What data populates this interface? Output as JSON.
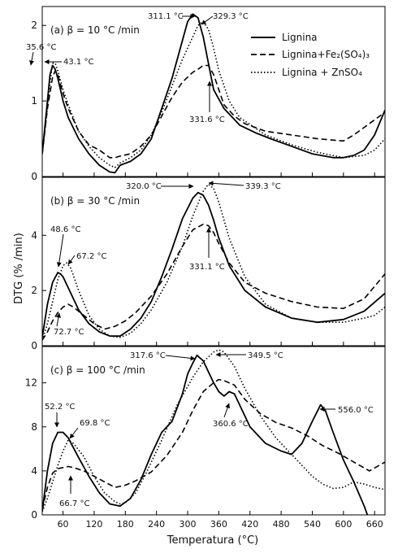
{
  "figure": {
    "ylabel": "DTG (% /min)",
    "xlabel": "Temperatura (°C)"
  },
  "legend": [
    {
      "label": "Lignina",
      "style": "solid"
    },
    {
      "label": "Lignina+Fe₂(SO₄)₃",
      "style": "dashed"
    },
    {
      "label": "Lignina + ZnSO₄",
      "style": "dotted"
    }
  ],
  "chart_data": [
    {
      "type": "line",
      "panel_label": "(a) β = 10 °C /min",
      "x_range": [
        20,
        680
      ],
      "ylim": [
        0,
        2.25
      ],
      "yticks": [
        0,
        1,
        2
      ],
      "series": [
        {
          "name": "Lignina",
          "style": "solid",
          "x": [
            20,
            30,
            35,
            40,
            45,
            50,
            60,
            70,
            90,
            110,
            130,
            150,
            160,
            170,
            190,
            210,
            230,
            250,
            270,
            290,
            300,
            310,
            320,
            330,
            340,
            350,
            370,
            400,
            430,
            460,
            500,
            540,
            580,
            600,
            620,
            640,
            660,
            680
          ],
          "y": [
            0.3,
            1.0,
            1.35,
            1.47,
            1.42,
            1.3,
            1.0,
            0.78,
            0.5,
            0.3,
            0.15,
            0.06,
            0.05,
            0.15,
            0.2,
            0.3,
            0.5,
            0.9,
            1.3,
            1.8,
            2.05,
            2.15,
            2.1,
            1.85,
            1.5,
            1.15,
            0.9,
            0.68,
            0.58,
            0.5,
            0.4,
            0.3,
            0.25,
            0.25,
            0.28,
            0.35,
            0.55,
            0.88
          ]
        },
        {
          "name": "Lignina+Fe₂(SO₄)₃",
          "style": "dashed",
          "x": [
            20,
            30,
            40,
            45,
            50,
            60,
            70,
            90,
            110,
            130,
            150,
            160,
            170,
            190,
            210,
            230,
            250,
            270,
            290,
            310,
            320,
            330,
            340,
            350,
            360,
            370,
            390,
            410,
            450,
            500,
            550,
            600,
            620,
            640,
            660,
            680
          ],
          "y": [
            0.3,
            0.9,
            1.32,
            1.4,
            1.35,
            1.1,
            0.9,
            0.6,
            0.42,
            0.35,
            0.25,
            0.25,
            0.27,
            0.3,
            0.4,
            0.55,
            0.8,
            1.05,
            1.25,
            1.38,
            1.42,
            1.47,
            1.47,
            1.35,
            1.15,
            0.95,
            0.8,
            0.7,
            0.6,
            0.55,
            0.5,
            0.47,
            0.55,
            0.65,
            0.75,
            0.85
          ]
        },
        {
          "name": "Lignina + ZnSO₄",
          "style": "dotted",
          "x": [
            20,
            30,
            35,
            40,
            45,
            50,
            60,
            70,
            90,
            110,
            130,
            150,
            160,
            170,
            190,
            210,
            230,
            250,
            270,
            290,
            310,
            320,
            330,
            340,
            350,
            360,
            380,
            400,
            450,
            500,
            550,
            600,
            640,
            660,
            680
          ],
          "y": [
            0.3,
            0.9,
            1.25,
            1.5,
            1.5,
            1.4,
            1.15,
            0.95,
            0.6,
            0.4,
            0.25,
            0.15,
            0.12,
            0.18,
            0.25,
            0.35,
            0.55,
            0.85,
            1.2,
            1.55,
            1.85,
            2.0,
            2.05,
            1.95,
            1.7,
            1.4,
            1.0,
            0.78,
            0.55,
            0.42,
            0.32,
            0.25,
            0.28,
            0.35,
            0.5
          ]
        }
      ],
      "annotations": [
        "35.6 °C",
        "43.1 °C",
        "311.1 °C",
        "329.3 °C",
        "331.6 °C"
      ]
    },
    {
      "type": "line",
      "panel_label": "(b) β = 30 °C /min",
      "x_range": [
        20,
        680
      ],
      "ylim": [
        0,
        6.1
      ],
      "yticks": [
        0,
        2,
        4
      ],
      "series": [
        {
          "name": "Lignina",
          "style": "solid",
          "x": [
            20,
            30,
            40,
            50,
            55,
            60,
            70,
            90,
            110,
            130,
            150,
            170,
            190,
            210,
            230,
            250,
            270,
            290,
            310,
            320,
            330,
            340,
            350,
            360,
            380,
            410,
            450,
            500,
            550,
            600,
            640,
            680
          ],
          "y": [
            0.3,
            1.5,
            2.3,
            2.65,
            2.6,
            2.5,
            2.1,
            1.3,
            0.8,
            0.5,
            0.35,
            0.35,
            0.6,
            1.0,
            1.6,
            2.5,
            3.5,
            4.6,
            5.35,
            5.55,
            5.45,
            5.1,
            4.55,
            3.9,
            2.9,
            2.0,
            1.4,
            1.0,
            0.85,
            0.95,
            1.25,
            1.9
          ]
        },
        {
          "name": "Lignina+Fe₂(SO₄)₃",
          "style": "dashed",
          "x": [
            20,
            30,
            40,
            50,
            60,
            70,
            80,
            100,
            120,
            140,
            160,
            180,
            200,
            230,
            260,
            290,
            310,
            330,
            340,
            350,
            360,
            380,
            410,
            450,
            500,
            550,
            600,
            640,
            680
          ],
          "y": [
            0.2,
            0.5,
            0.9,
            1.2,
            1.4,
            1.5,
            1.4,
            1.1,
            0.8,
            0.6,
            0.7,
            0.9,
            1.2,
            1.8,
            2.6,
            3.6,
            4.2,
            4.4,
            4.35,
            4.1,
            3.7,
            3.0,
            2.3,
            1.9,
            1.6,
            1.4,
            1.35,
            1.7,
            2.6
          ]
        },
        {
          "name": "Lignina + ZnSO₄",
          "style": "dotted",
          "x": [
            20,
            30,
            40,
            50,
            60,
            67,
            75,
            90,
            110,
            130,
            150,
            170,
            190,
            210,
            230,
            260,
            290,
            310,
            330,
            340,
            350,
            360,
            380,
            410,
            450,
            500,
            550,
            600,
            640,
            660,
            680
          ],
          "y": [
            0.2,
            0.8,
            1.6,
            2.4,
            2.9,
            3.0,
            2.8,
            2.0,
            1.1,
            0.6,
            0.35,
            0.3,
            0.45,
            0.8,
            1.3,
            2.3,
            3.6,
            4.7,
            5.6,
            5.85,
            5.7,
            5.2,
            3.9,
            2.5,
            1.5,
            1.0,
            0.85,
            0.85,
            1.0,
            1.1,
            1.4
          ]
        }
      ],
      "annotations": [
        "320.0 °C",
        "339.3 °C",
        "48.6 °C",
        "67.2 °C",
        "72.7 °C",
        "331.1 °C"
      ]
    },
    {
      "type": "line",
      "panel_label": "(c) β = 100 °C /min",
      "x_range": [
        20,
        680
      ],
      "ylim": [
        0,
        15.3
      ],
      "yticks": [
        0,
        4,
        8,
        12
      ],
      "xticks": [
        60,
        120,
        180,
        240,
        300,
        360,
        420,
        480,
        540,
        600,
        660
      ],
      "series": [
        {
          "name": "Lignina",
          "style": "solid",
          "x": [
            20,
            30,
            40,
            50,
            60,
            70,
            90,
            110,
            130,
            150,
            170,
            190,
            210,
            230,
            250,
            270,
            290,
            300,
            310,
            318,
            330,
            340,
            350,
            360,
            370,
            380,
            390,
            400,
            420,
            450,
            480,
            500,
            520,
            540,
            556,
            565,
            580,
            600,
            620,
            640,
            650
          ],
          "y": [
            0.3,
            4.0,
            6.5,
            7.5,
            7.5,
            7.0,
            5.2,
            3.5,
            2.0,
            1.0,
            0.8,
            1.5,
            3.2,
            5.5,
            7.5,
            8.5,
            11.0,
            12.8,
            13.8,
            14.5,
            14.0,
            13.0,
            12.0,
            11.2,
            10.8,
            11.2,
            11.0,
            10.0,
            8.0,
            6.5,
            5.8,
            5.5,
            6.5,
            8.5,
            10.0,
            9.5,
            7.5,
            5.0,
            3.0,
            0.8,
            -0.5
          ]
        },
        {
          "name": "Lignina+Fe₂(SO₄)₃",
          "style": "dashed",
          "x": [
            20,
            30,
            40,
            50,
            60,
            70,
            80,
            100,
            120,
            140,
            160,
            180,
            200,
            230,
            260,
            290,
            310,
            330,
            350,
            360,
            370,
            390,
            410,
            440,
            470,
            500,
            530,
            560,
            590,
            620,
            650,
            680
          ],
          "y": [
            0.5,
            2.5,
            3.8,
            4.2,
            4.3,
            4.4,
            4.3,
            4.0,
            3.5,
            3.0,
            2.5,
            2.7,
            3.1,
            3.9,
            5.4,
            7.5,
            9.5,
            11.2,
            12.0,
            12.3,
            12.2,
            11.8,
            10.5,
            9.2,
            8.4,
            7.9,
            7.2,
            6.3,
            5.6,
            4.8,
            4.0,
            4.8
          ]
        },
        {
          "name": "Lignina + ZnSO₄",
          "style": "dotted",
          "x": [
            20,
            30,
            40,
            50,
            60,
            70,
            80,
            100,
            120,
            140,
            160,
            170,
            180,
            200,
            220,
            250,
            280,
            310,
            330,
            350,
            360,
            370,
            390,
            410,
            440,
            470,
            500,
            520,
            540,
            560,
            580,
            600,
            620,
            640,
            660,
            680
          ],
          "y": [
            0.3,
            1.5,
            3.0,
            4.5,
            5.8,
            6.8,
            6.5,
            5.3,
            3.5,
            2.0,
            1.2,
            1.0,
            1.1,
            2.0,
            3.8,
            6.8,
            10.0,
            12.5,
            13.9,
            14.8,
            15.0,
            14.8,
            13.5,
            11.5,
            9.0,
            7.0,
            5.5,
            4.5,
            3.5,
            2.8,
            2.4,
            2.5,
            3.0,
            2.8,
            2.5,
            2.3
          ]
        }
      ],
      "annotations": [
        "317.6 °C",
        "349.5 °C",
        "52.2 °C",
        "69.8 °C",
        "66.7 °C",
        "360.6 °C",
        "556.0 °C"
      ]
    }
  ]
}
